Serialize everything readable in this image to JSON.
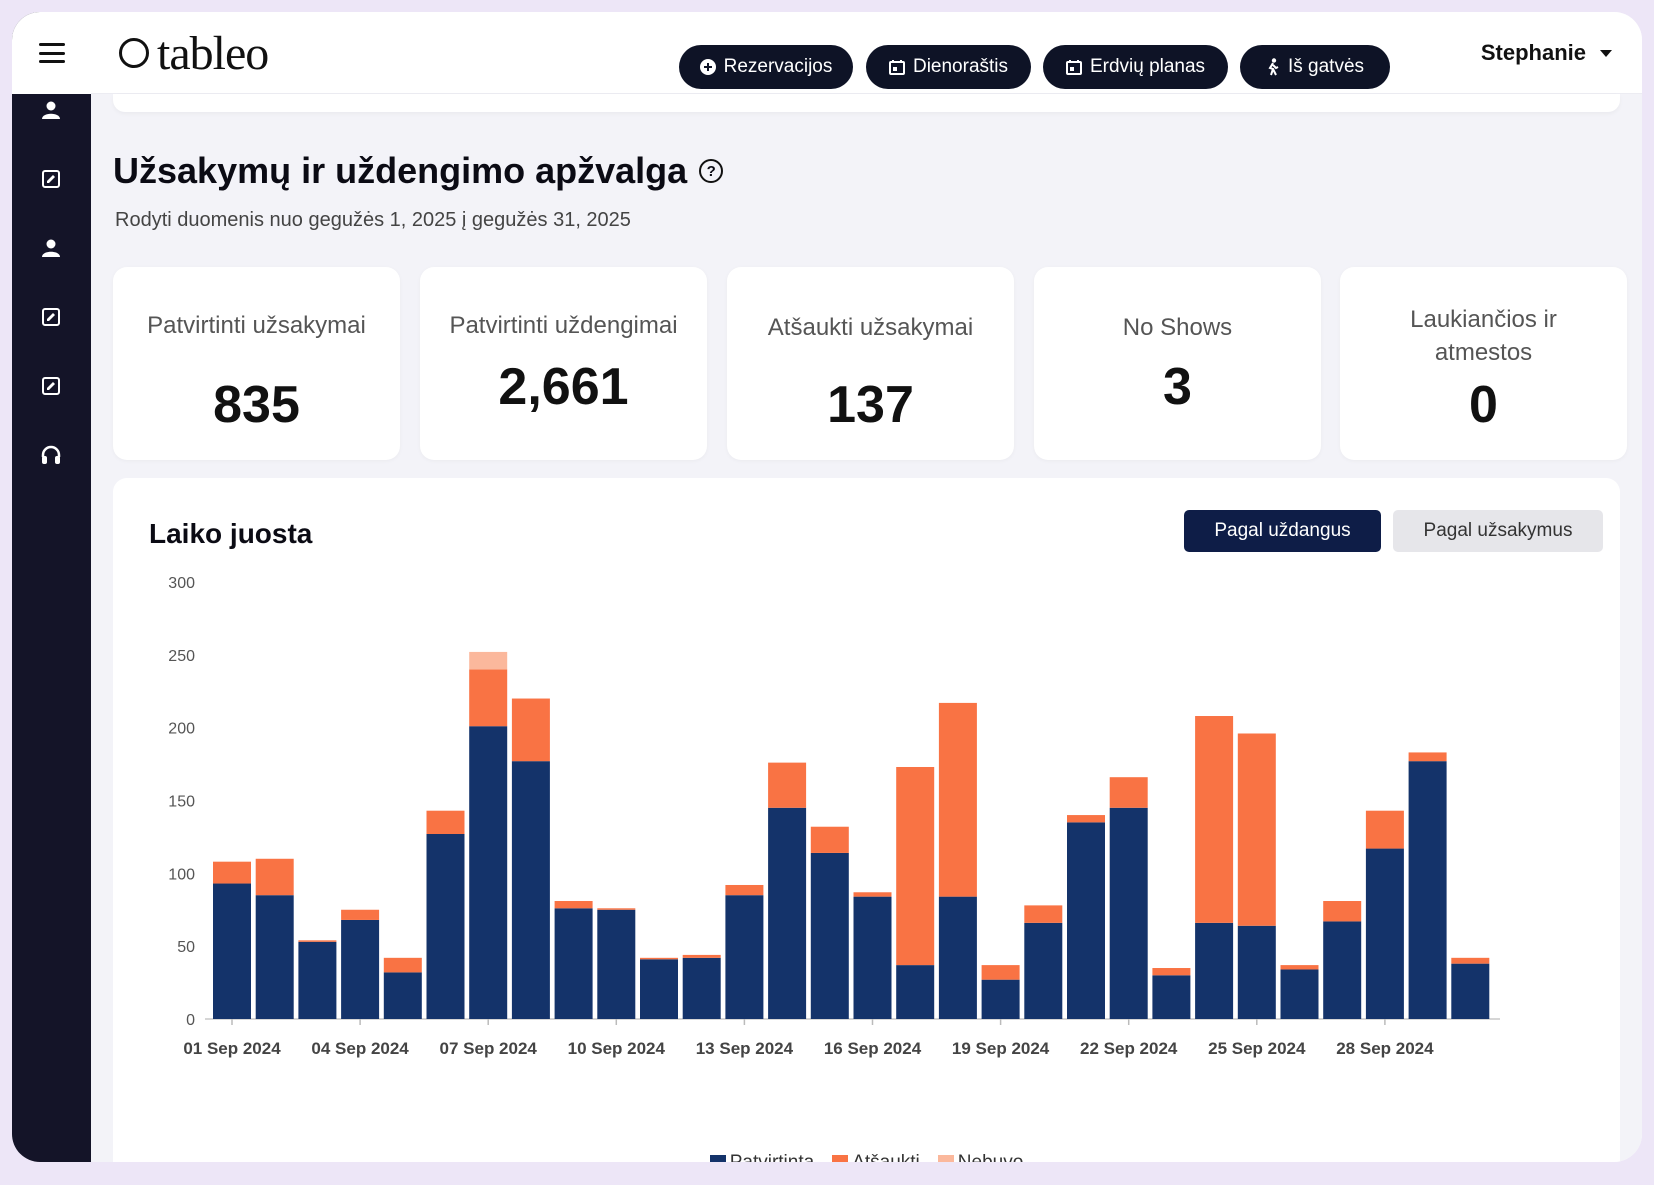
{
  "app": {
    "logo_text": "tableo",
    "user_name": "Stephanie"
  },
  "nav": {
    "buttons": [
      "Rezervacijos",
      "Dienoraštis",
      "Erdvių planas",
      "Iš gatvės"
    ]
  },
  "sidebar": {
    "icons": [
      "person-icon",
      "edit-icon",
      "person-icon",
      "edit-icon",
      "edit-icon",
      "headset-icon"
    ]
  },
  "page": {
    "title": "Užsakymų ir uždengimo apžvalga",
    "subtitle": "Rodyti duomenis nuo gegužės 1, 2025 į gegužės 31, 2025"
  },
  "stats": [
    {
      "label": "Patvirtinti užsakymai",
      "value": "835"
    },
    {
      "label": "Patvirtinti uždengimai",
      "value": "2,661"
    },
    {
      "label": "Atšaukti užsakymai",
      "value": "137"
    },
    {
      "label": "No Shows",
      "value": "3"
    },
    {
      "label": "Laukiančios ir atmestos",
      "value": "0"
    }
  ],
  "timeline": {
    "title": "Laiko juosta",
    "toggle_active": "Pagal uždangus",
    "toggle_inactive": "Pagal užsakymus"
  },
  "colors": {
    "confirmed": "#14336a",
    "cancelled": "#f97344",
    "noshow": "#fbb89c",
    "dark": "#0e1326"
  },
  "chart_data": {
    "type": "bar",
    "stacked": true,
    "categories": [
      "01 Sep 2024",
      "02 Sep 2024",
      "03 Sep 2024",
      "04 Sep 2024",
      "05 Sep 2024",
      "06 Sep 2024",
      "07 Sep 2024",
      "08 Sep 2024",
      "09 Sep 2024",
      "10 Sep 2024",
      "11 Sep 2024",
      "12 Sep 2024",
      "13 Sep 2024",
      "14 Sep 2024",
      "15 Sep 2024",
      "16 Sep 2024",
      "17 Sep 2024",
      "18 Sep 2024",
      "19 Sep 2024",
      "20 Sep 2024",
      "21 Sep 2024",
      "22 Sep 2024",
      "23 Sep 2024",
      "24 Sep 2024",
      "25 Sep 2024",
      "26 Sep 2024",
      "27 Sep 2024",
      "28 Sep 2024",
      "29 Sep 2024",
      "30 Sep 2024"
    ],
    "x_tick_labels": [
      "01 Sep 2024",
      "04 Sep 2024",
      "07 Sep 2024",
      "10 Sep 2024",
      "13 Sep 2024",
      "16 Sep 2024",
      "19 Sep 2024",
      "22 Sep 2024",
      "25 Sep 2024",
      "28 Sep 2024"
    ],
    "series": [
      {
        "name": "Patvirtinta",
        "values": [
          93,
          85,
          53,
          68,
          32,
          127,
          201,
          177,
          76,
          75,
          41,
          42,
          85,
          145,
          114,
          84,
          37,
          84,
          27,
          66,
          135,
          145,
          30,
          66,
          64,
          34,
          67,
          117,
          177,
          38
        ]
      },
      {
        "name": "Atšaukti",
        "values": [
          15,
          25,
          1,
          7,
          10,
          16,
          39,
          43,
          5,
          1,
          1,
          2,
          7,
          31,
          18,
          3,
          136,
          133,
          10,
          12,
          5,
          21,
          5,
          142,
          132,
          3,
          14,
          26,
          6,
          4
        ]
      },
      {
        "name": "Nebuvo",
        "values": [
          0,
          0,
          0,
          0,
          0,
          0,
          12,
          0,
          0,
          0,
          0,
          0,
          0,
          0,
          0,
          0,
          0,
          0,
          0,
          0,
          0,
          0,
          0,
          0,
          0,
          0,
          0,
          0,
          0,
          0
        ]
      }
    ],
    "ylim": [
      0,
      300
    ],
    "yticks": [
      0,
      50,
      100,
      150,
      200,
      250,
      300
    ],
    "grid": false,
    "legend": "bottom-center"
  }
}
